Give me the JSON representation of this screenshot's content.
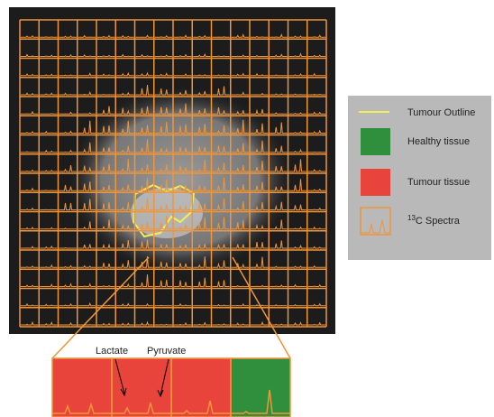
{
  "legend": {
    "items": [
      {
        "label": "Tumour Outline"
      },
      {
        "label": "Healthy tissue"
      },
      {
        "label": "Tumour tissue"
      },
      {
        "superscript": "13",
        "label": "C Spectra"
      }
    ]
  },
  "inset": {
    "annotations": [
      "Lactate",
      "Pyruvate"
    ]
  }
}
